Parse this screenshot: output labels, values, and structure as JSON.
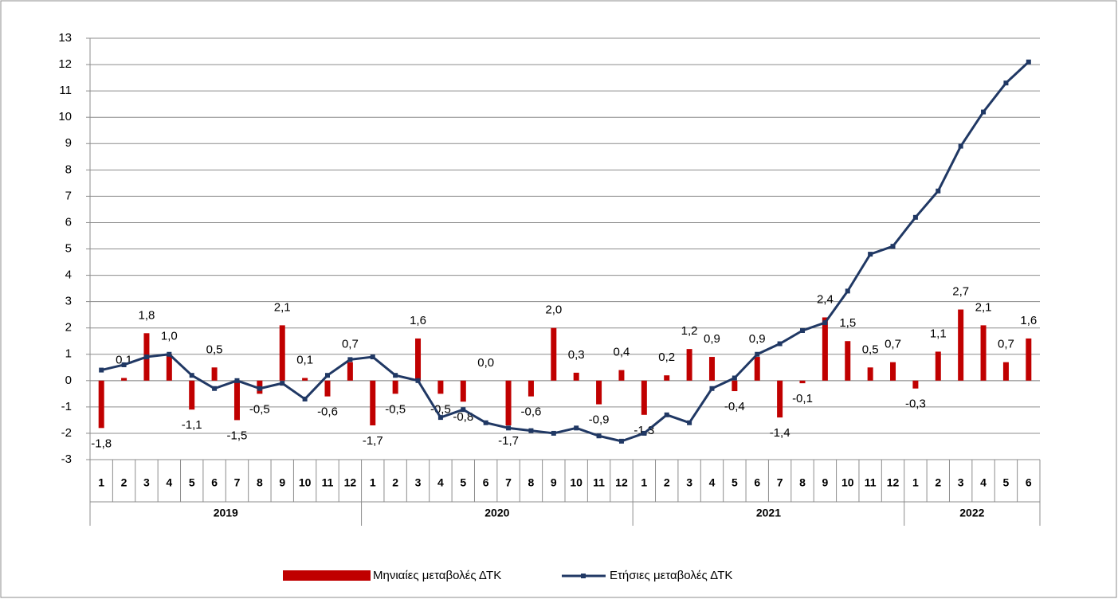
{
  "chart_data": {
    "type": "bar-line",
    "categories": [
      "1",
      "2",
      "3",
      "4",
      "5",
      "6",
      "7",
      "8",
      "9",
      "10",
      "11",
      "12",
      "1",
      "2",
      "3",
      "4",
      "5",
      "6",
      "7",
      "8",
      "9",
      "10",
      "11",
      "12",
      "1",
      "2",
      "3",
      "4",
      "5",
      "6",
      "7",
      "8",
      "9",
      "10",
      "11",
      "12",
      "1",
      "2",
      "3",
      "4",
      "5",
      "6"
    ],
    "year_groups": [
      "2019",
      "2020",
      "2021",
      "2022"
    ],
    "series": [
      {
        "name": "Μηνιαίες μεταβολές ΔΤΚ",
        "type": "bar",
        "color": "#c00000",
        "values": [
          -1.8,
          0.1,
          1.8,
          1.0,
          -1.1,
          0.5,
          -1.5,
          -0.5,
          2.1,
          0.1,
          -0.6,
          0.7,
          -1.7,
          -0.5,
          1.6,
          -0.5,
          -0.8,
          0.0,
          -1.7,
          -0.6,
          2.0,
          0.3,
          -0.9,
          0.4,
          -1.3,
          0.2,
          1.2,
          0.9,
          -0.4,
          0.9,
          -1.4,
          -0.1,
          2.4,
          1.5,
          0.5,
          0.7,
          -0.3,
          1.1,
          2.7,
          2.1,
          0.7,
          1.6
        ],
        "value_labels": [
          "-1,8",
          "0,1",
          "1,8",
          "1,0",
          "-1,1",
          "0,5",
          "-1,5",
          "-0,5",
          "2,1",
          "0,1",
          "-0,6",
          "0,7",
          "-1,7",
          "-0,5",
          "1,6",
          "-0,5",
          "-0,8",
          "0,0",
          "-1,7",
          "-0,6",
          "2,0",
          "0,3",
          "-0,9",
          "0,4",
          "-1,3",
          "0,2",
          "1,2",
          "0,9",
          "-0,4",
          "0,9",
          "-1,4",
          "-0,1",
          "2,4",
          "1,5",
          "0,5",
          "0,7",
          "-0,3",
          "1,1",
          "2,7",
          "2,1",
          "0,7",
          "1,6"
        ]
      },
      {
        "name": "Ετήσιες μεταβολές ΔΤΚ",
        "type": "line",
        "color": "#203864",
        "values": [
          0.4,
          0.6,
          0.9,
          1.0,
          0.2,
          -0.3,
          0.0,
          -0.3,
          -0.1,
          -0.7,
          0.2,
          0.8,
          0.9,
          0.2,
          0.0,
          -1.4,
          -1.1,
          -1.6,
          -1.8,
          -1.9,
          -2.0,
          -1.8,
          -2.1,
          -2.3,
          -2.0,
          -1.3,
          -1.6,
          -0.3,
          0.1,
          1.0,
          1.4,
          1.9,
          2.2,
          3.4,
          4.8,
          5.1,
          6.2,
          7.2,
          8.9,
          10.2,
          11.3,
          12.1
        ]
      }
    ],
    "ylim": [
      -3,
      13
    ],
    "yticks": [
      -3,
      -2,
      -1,
      0,
      1,
      2,
      3,
      4,
      5,
      6,
      7,
      8,
      9,
      10,
      11,
      12,
      13
    ],
    "grid": true,
    "legend": "bottom"
  }
}
